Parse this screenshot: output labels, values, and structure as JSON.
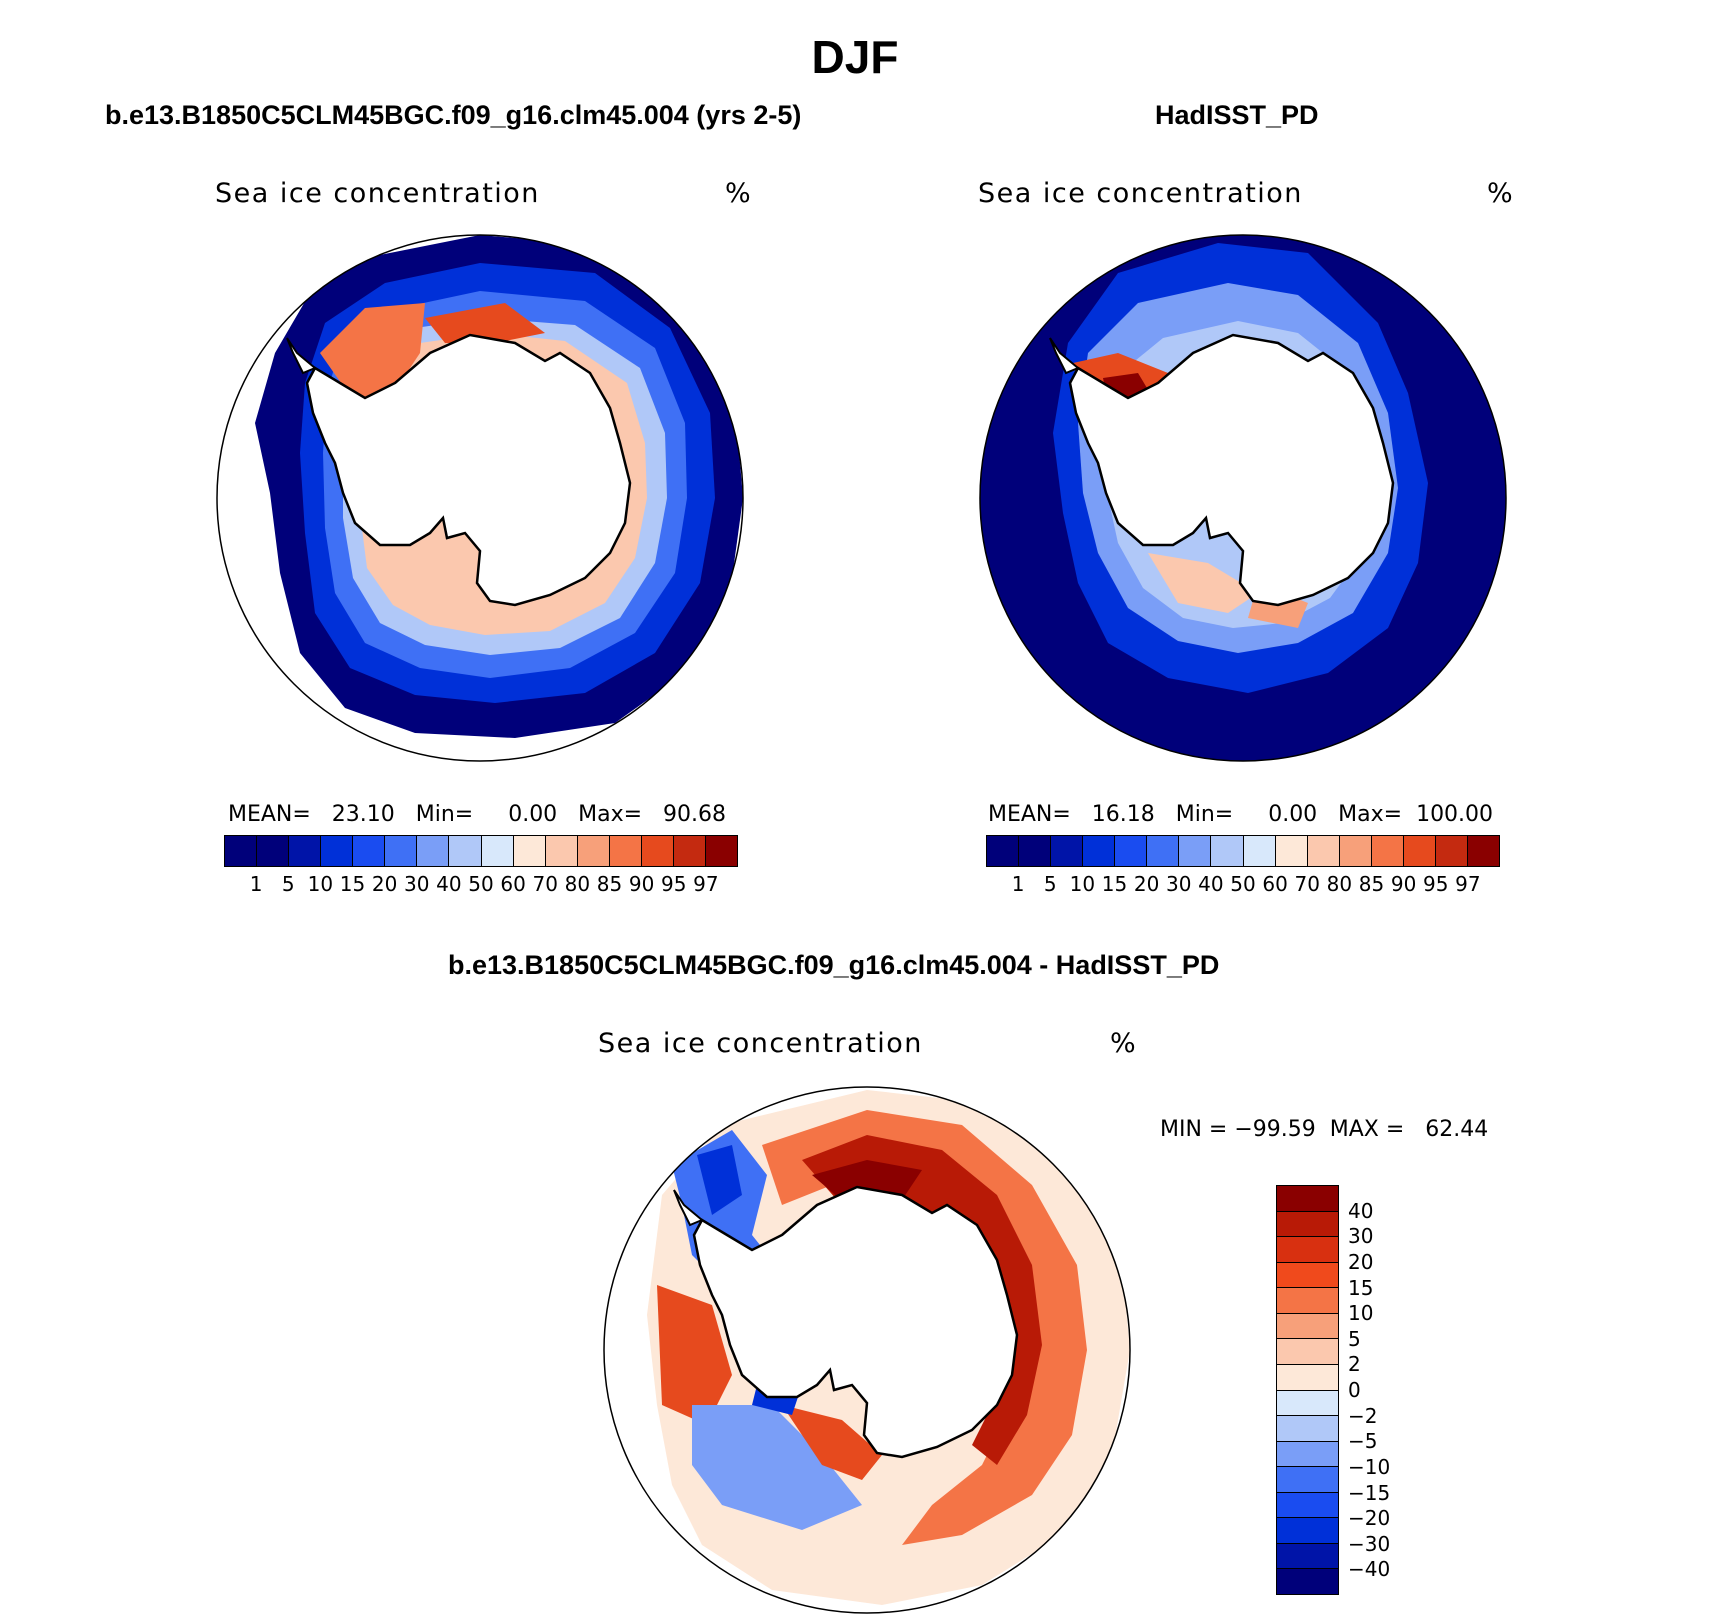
{
  "title": "DJF",
  "panels": {
    "model": {
      "case_title": "b.e13.B1850C5CLM45BGC.f09_g16.clm45.004 (yrs 2-5)",
      "field": "Sea ice concentration",
      "units": "%",
      "stats": "MEAN=   23.10   Min=     0.00   Max=   90.68",
      "mean": 23.1,
      "min": 0.0,
      "max": 90.68
    },
    "obs": {
      "case_title": "HadISST_PD",
      "field": "Sea ice concentration",
      "units": "%",
      "stats": "MEAN=   16.18   Min=     0.00   Max=  100.00",
      "mean": 16.18,
      "min": 0.0,
      "max": 100.0
    },
    "diff": {
      "case_title": "b.e13.B1850C5CLM45BGC.f09_g16.clm45.004 - HadISST_PD",
      "field": "Sea ice concentration",
      "units": "%",
      "stats": "MIN = −99.59  MAX =   62.44",
      "min": -99.59,
      "max": 62.44
    }
  },
  "abs_colorbar": {
    "labels": [
      "1",
      "5",
      "10",
      "15",
      "20",
      "30",
      "40",
      "50",
      "60",
      "70",
      "80",
      "85",
      "90",
      "95",
      "97"
    ],
    "colors": [
      "#00007a",
      "#0014a8",
      "#0030d8",
      "#1a4cf0",
      "#3f70f5",
      "#7a9ef7",
      "#b0c8f8",
      "#d8e8fb",
      "#fde8d8",
      "#fbc8ae",
      "#f7a07a",
      "#f47446",
      "#e64a1e",
      "#c42a10",
      "#8a0000"
    ]
  },
  "diff_colorbar": {
    "labels": [
      "40",
      "30",
      "20",
      "15",
      "10",
      "5",
      "2",
      "0",
      "−2",
      "−5",
      "−10",
      "−15",
      "−20",
      "−30",
      "−40"
    ],
    "colors": [
      "#8a0000",
      "#b81a06",
      "#d83010",
      "#f04a1c",
      "#f47446",
      "#f7a07a",
      "#fbc8ae",
      "#fde8d8",
      "#d8e8fb",
      "#b0c8f8",
      "#7a9ef7",
      "#3f70f5",
      "#1a4cf0",
      "#0030d8",
      "#0014a8",
      "#00007a"
    ]
  },
  "map_colors": {
    "ocean_low": "#00007a",
    "land": "#ffffff",
    "coast": "#000000"
  }
}
